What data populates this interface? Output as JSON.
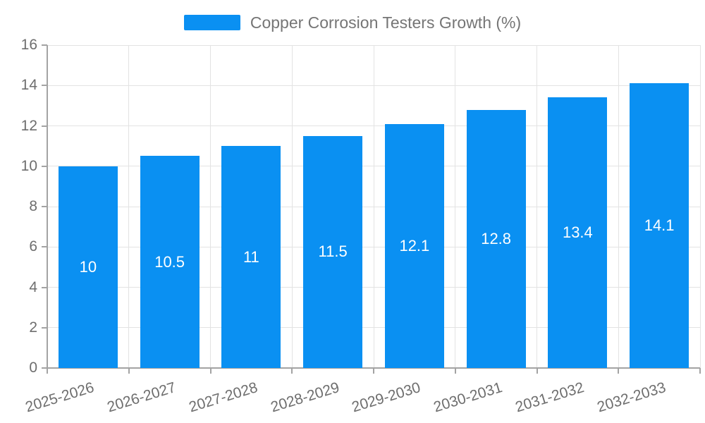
{
  "chart_data": {
    "type": "bar",
    "title": "Copper Corrosion Testers Growth (%)",
    "categories": [
      "2025-2026",
      "2026-2027",
      "2027-2028",
      "2028-2029",
      "2029-2030",
      "2030-2031",
      "2031-2032",
      "2032-2033"
    ],
    "values": [
      10,
      10.5,
      11,
      11.5,
      12.1,
      12.8,
      13.4,
      14.1
    ],
    "value_labels": [
      "10",
      "10.5",
      "11",
      "11.5",
      "12.1",
      "12.8",
      "13.4",
      "14.1"
    ],
    "xlabel": "",
    "ylabel": "",
    "ylim": [
      0,
      16
    ],
    "ytick_step": 2,
    "ytick_labels": [
      "0",
      "2",
      "4",
      "6",
      "8",
      "10",
      "12",
      "14",
      "16"
    ],
    "grid": true,
    "legend_position": "top-center",
    "colors": {
      "bar": "#0a90f2",
      "bar_value_text": "#ffffff",
      "axis_line": "#a3a3a3",
      "grid_line": "#e3e3e3",
      "tick_text": "#6e6e6e",
      "legend_text": "#757575",
      "background": "#ffffff"
    }
  }
}
